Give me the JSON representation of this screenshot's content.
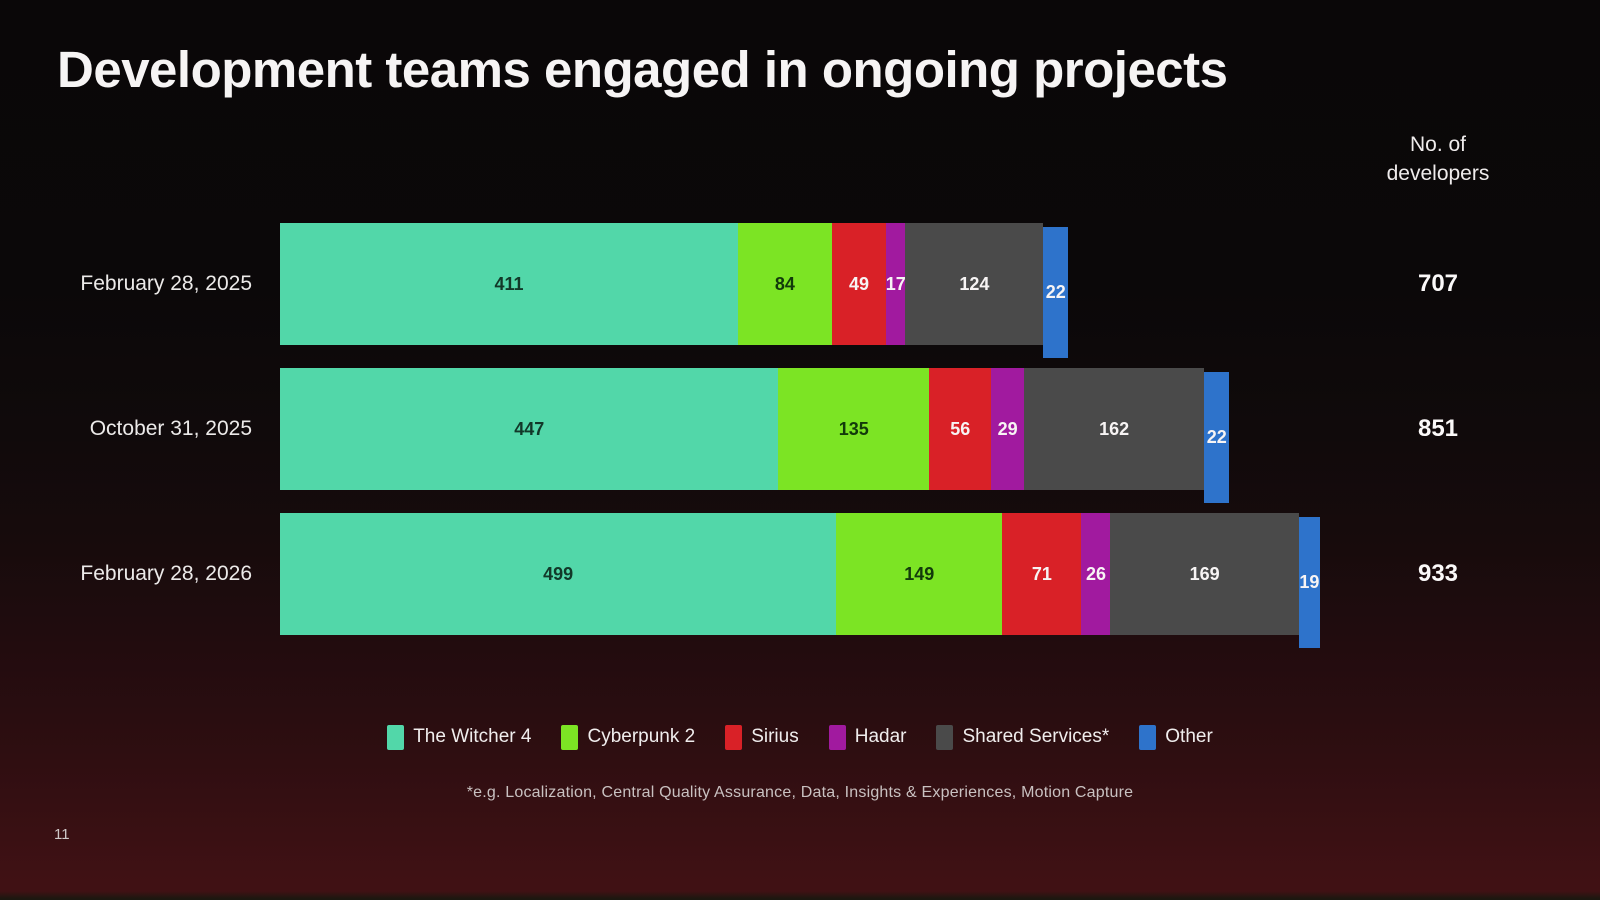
{
  "title": "Development teams engaged in ongoing projects",
  "developers_header": {
    "line1": "No. of",
    "line2": "developers"
  },
  "footnote": "*e.g. Localization, Central Quality Assurance, Data, Insights & Experiences, Motion Capture",
  "page_number": "11",
  "colors": {
    "background_top": "#0a0708",
    "background_bottom": "#411114",
    "title_text": "#f6f4f4",
    "light_value_text": "#f7f4f4"
  },
  "chart_data": {
    "type": "bar",
    "orientation": "horizontal",
    "stacked": true,
    "grid": false,
    "legend_position": "bottom",
    "value_labels": true,
    "categories": [
      "February 28, 2025",
      "October 31, 2025",
      "February 28, 2026"
    ],
    "series": [
      {
        "name": "The Witcher 4",
        "color": "#52d7a9",
        "label_color": "#123829",
        "values": [
          411,
          447,
          499
        ]
      },
      {
        "name": "Cyberpunk 2",
        "color": "#7ce424",
        "label_color": "#123a0b",
        "values": [
          84,
          135,
          149
        ]
      },
      {
        "name": "Sirius",
        "color": "#d92127",
        "label_color": "#f7f4f4",
        "values": [
          49,
          56,
          71
        ]
      },
      {
        "name": "Hadar",
        "color": "#a11a9f",
        "label_color": "#f7f4f4",
        "values": [
          17,
          29,
          26
        ]
      },
      {
        "name": "Shared Services*",
        "color": "#4a4a4a",
        "label_color": "#f7f4f4",
        "values": [
          124,
          162,
          169
        ]
      },
      {
        "name": "Other",
        "color": "#2e73cb",
        "label_color": "#f7f4f4",
        "values": [
          22,
          22,
          19
        ]
      }
    ],
    "totals": [
      707,
      851,
      933
    ],
    "totals_header": "No. of developers"
  }
}
